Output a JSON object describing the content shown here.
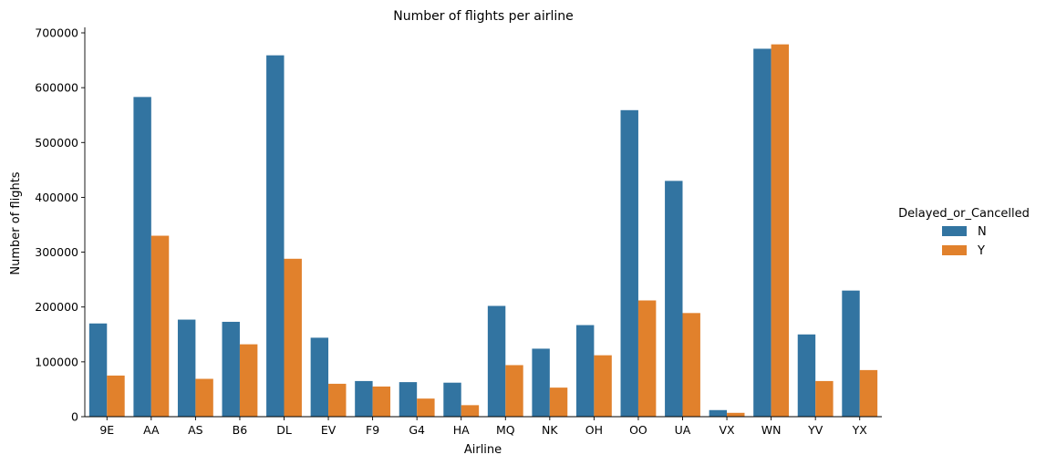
{
  "chart_data": {
    "type": "bar",
    "title": "Number of flights per airline",
    "xlabel": "Airline",
    "ylabel": "Number of flights",
    "ylim": [
      0,
      710000
    ],
    "yticks": [
      0,
      100000,
      200000,
      300000,
      400000,
      500000,
      600000,
      700000
    ],
    "categories": [
      "9E",
      "AA",
      "AS",
      "B6",
      "DL",
      "EV",
      "F9",
      "G4",
      "HA",
      "MQ",
      "NK",
      "OH",
      "OO",
      "UA",
      "VX",
      "WN",
      "YV",
      "YX"
    ],
    "legend_title": "Delayed_or_Cancelled",
    "legend_position": "right",
    "grid": false,
    "series": [
      {
        "name": "N",
        "color": "#3274a1",
        "values": [
          170000,
          583000,
          177000,
          173000,
          659000,
          144000,
          65000,
          63000,
          62000,
          202000,
          124000,
          167000,
          559000,
          430000,
          12000,
          671000,
          150000,
          230000
        ]
      },
      {
        "name": "Y",
        "color": "#e1812c",
        "values": [
          75000,
          330000,
          69000,
          132000,
          288000,
          60000,
          55000,
          33000,
          21000,
          94000,
          53000,
          112000,
          212000,
          189000,
          7000,
          679000,
          65000,
          85000
        ]
      }
    ]
  }
}
